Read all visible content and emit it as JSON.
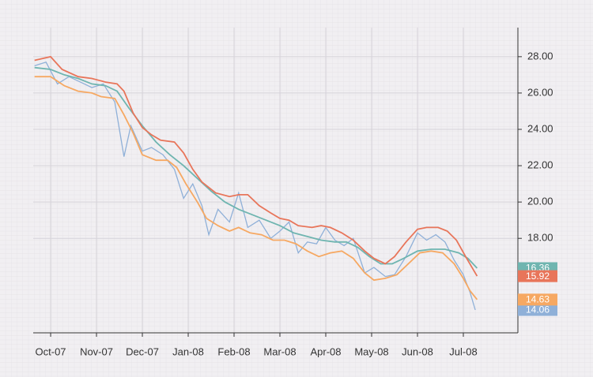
{
  "chart_data": {
    "type": "line",
    "xlim": [
      -0.38,
      10.19
    ],
    "xticks": [
      {
        "value": 0,
        "label": "Oct-07"
      },
      {
        "value": 1,
        "label": "Nov-07"
      },
      {
        "value": 2,
        "label": "Dec-07"
      },
      {
        "value": 3,
        "label": "Jan-08"
      },
      {
        "value": 4,
        "label": "Feb-08"
      },
      {
        "value": 5,
        "label": "Mar-08"
      },
      {
        "value": 6,
        "label": "Apr-08"
      },
      {
        "value": 7,
        "label": "May-08"
      },
      {
        "value": 8,
        "label": "Jun-08"
      },
      {
        "value": 9,
        "label": "Jul-08"
      }
    ],
    "ylim": [
      12.8,
      29.6
    ],
    "yticks": [
      {
        "value": 18,
        "label": "18.00"
      },
      {
        "value": 20,
        "label": "20.00"
      },
      {
        "value": 22,
        "label": "22.00"
      },
      {
        "value": 24,
        "label": "24.00"
      },
      {
        "value": 26,
        "label": "26.00"
      },
      {
        "value": 28,
        "label": "28.00"
      }
    ],
    "grid": true,
    "series": [
      {
        "color": "#8fb0d8",
        "x": [
          -0.35,
          -0.1,
          0.15,
          0.4,
          0.65,
          0.9,
          1.15,
          1.4,
          1.6,
          1.75,
          2.0,
          2.2,
          2.45,
          2.7,
          2.9,
          3.1,
          3.3,
          3.45,
          3.65,
          3.9,
          4.1,
          4.3,
          4.55,
          4.8,
          5.0,
          5.2,
          5.4,
          5.6,
          5.8,
          6.0,
          6.2,
          6.4,
          6.6,
          6.85,
          7.05,
          7.3,
          7.5,
          7.75,
          8.0,
          8.2,
          8.4,
          8.6,
          8.8,
          9.0,
          9.15,
          9.26
        ],
        "values": [
          27.5,
          27.7,
          26.5,
          26.9,
          26.6,
          26.3,
          26.5,
          25.5,
          22.5,
          24.2,
          22.8,
          23.0,
          22.6,
          21.8,
          20.2,
          21.0,
          19.8,
          18.2,
          19.6,
          18.9,
          20.5,
          18.6,
          19.0,
          18.0,
          18.4,
          18.9,
          17.2,
          17.8,
          17.7,
          18.6,
          17.9,
          17.6,
          18.0,
          16.1,
          16.4,
          15.9,
          16.0,
          17.0,
          18.3,
          17.9,
          18.2,
          17.8,
          16.8,
          16.0,
          15.0,
          14.06
        ]
      },
      {
        "color": "#6fb5b0",
        "x": [
          -0.35,
          0,
          0.3,
          0.6,
          0.9,
          1.2,
          1.45,
          1.7,
          2.0,
          2.3,
          2.6,
          2.9,
          3.2,
          3.5,
          3.8,
          4.1,
          4.4,
          4.7,
          5.0,
          5.3,
          5.6,
          5.9,
          6.2,
          6.45,
          6.7,
          6.95,
          7.2,
          7.45,
          7.7,
          8.0,
          8.3,
          8.6,
          8.9,
          9.1,
          9.3
        ],
        "values": [
          27.4,
          27.3,
          27.0,
          26.8,
          26.5,
          26.4,
          26.1,
          25.2,
          24.2,
          23.3,
          22.6,
          22.0,
          21.3,
          20.6,
          20.0,
          19.6,
          19.3,
          19.0,
          18.7,
          18.3,
          18.1,
          17.9,
          17.8,
          17.8,
          17.5,
          17.0,
          16.6,
          16.6,
          16.9,
          17.3,
          17.4,
          17.4,
          17.2,
          16.9,
          16.36
        ]
      },
      {
        "color": "#e8755a",
        "x": [
          -0.35,
          0,
          0.25,
          0.6,
          0.9,
          1.2,
          1.45,
          1.6,
          1.8,
          2.0,
          2.2,
          2.4,
          2.7,
          2.9,
          3.1,
          3.3,
          3.6,
          3.9,
          4.1,
          4.3,
          4.55,
          4.8,
          5.0,
          5.2,
          5.4,
          5.7,
          5.9,
          6.1,
          6.35,
          6.6,
          6.85,
          7.05,
          7.3,
          7.5,
          7.75,
          8.0,
          8.2,
          8.45,
          8.65,
          8.85,
          9.05,
          9.3
        ],
        "values": [
          27.8,
          28.0,
          27.3,
          26.9,
          26.8,
          26.6,
          26.5,
          26.1,
          24.9,
          24.1,
          23.7,
          23.4,
          23.3,
          22.7,
          21.8,
          21.1,
          20.5,
          20.3,
          20.4,
          20.4,
          19.8,
          19.4,
          19.1,
          19.0,
          18.7,
          18.6,
          18.7,
          18.6,
          18.3,
          17.9,
          17.3,
          16.9,
          16.6,
          17.0,
          17.8,
          18.5,
          18.6,
          18.6,
          18.4,
          17.9,
          17.0,
          15.92
        ]
      },
      {
        "color": "#f6a862",
        "x": [
          -0.35,
          0,
          0.3,
          0.6,
          0.9,
          1.1,
          1.4,
          1.6,
          1.8,
          2.0,
          2.3,
          2.55,
          2.75,
          2.95,
          3.2,
          3.4,
          3.65,
          3.9,
          4.1,
          4.35,
          4.6,
          4.85,
          5.1,
          5.35,
          5.6,
          5.85,
          6.1,
          6.35,
          6.6,
          6.85,
          7.05,
          7.3,
          7.55,
          7.8,
          8.05,
          8.3,
          8.55,
          8.8,
          9.0,
          9.15,
          9.3
        ],
        "values": [
          26.9,
          26.9,
          26.4,
          26.1,
          26.0,
          25.8,
          25.7,
          24.8,
          23.8,
          22.6,
          22.3,
          22.3,
          21.9,
          21.0,
          20.0,
          19.1,
          18.7,
          18.4,
          18.6,
          18.3,
          18.2,
          17.9,
          17.9,
          17.7,
          17.3,
          17.0,
          17.2,
          17.3,
          16.9,
          16.1,
          15.7,
          15.8,
          16.0,
          16.6,
          17.2,
          17.3,
          17.2,
          16.6,
          15.8,
          15.1,
          14.63
        ]
      }
    ]
  }
}
